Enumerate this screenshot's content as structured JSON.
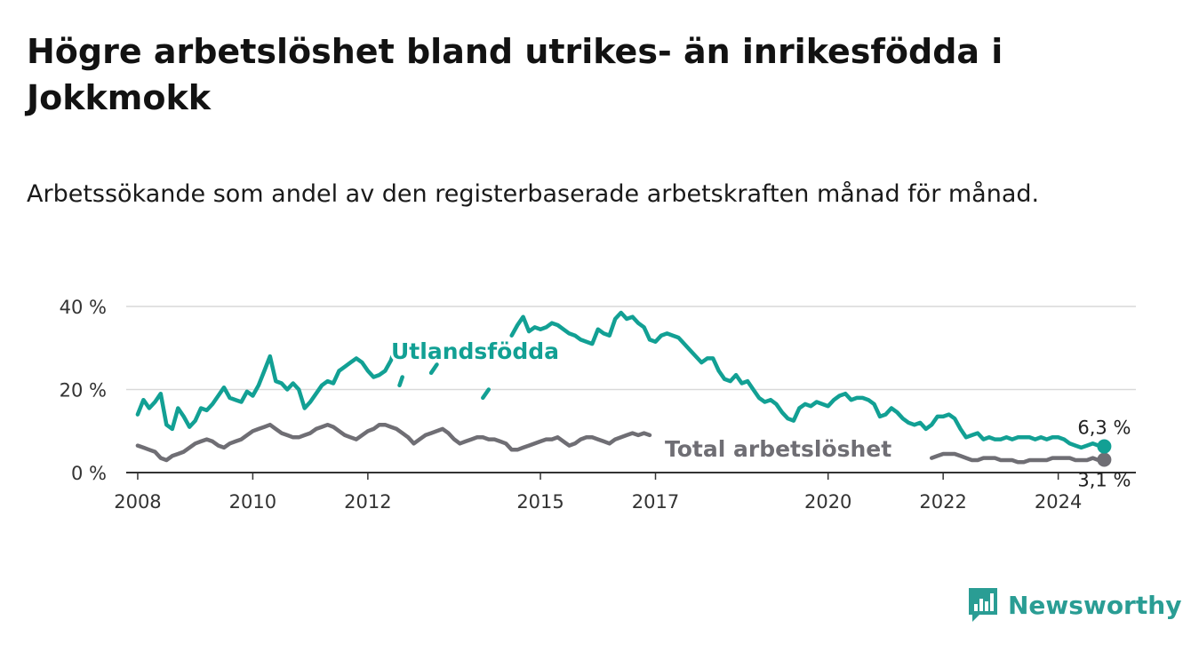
{
  "title": "Högre arbetslöshet bland utrikes- än inrikesfödda i Jokkmokk",
  "subtitle": "Arbetssökande som andel av den registerbaserade arbetskraften månad för månad.",
  "brand": {
    "name": "Newsworthy",
    "color": "#2a9d94",
    "icon": "bar-chart-logo-icon"
  },
  "colors": {
    "foreign_born": "#12a094",
    "total": "#6f6e74",
    "grid": "#d9d9d9"
  },
  "chart_data": {
    "type": "line",
    "ylim": [
      0,
      40
    ],
    "yticks": [
      0,
      20,
      40
    ],
    "ytick_labels": [
      "0 %",
      "20 %",
      "40 %"
    ],
    "x_domain": [
      2007.8,
      2025.35
    ],
    "xticks": [
      2008,
      2010,
      2012,
      2015,
      2017,
      2020,
      2022,
      2024
    ],
    "xtick_labels": [
      "2008",
      "2010",
      "2012",
      "2015",
      "2017",
      "2020",
      "2022",
      "2024"
    ],
    "grid": true,
    "legend": "inline labels",
    "series": [
      {
        "name": "Utlandsfödda",
        "key": "foreign_born",
        "end_label": "6,3 %",
        "points": [
          [
            2008.0,
            14.0
          ],
          [
            2008.1,
            17.5
          ],
          [
            2008.2,
            15.5
          ],
          [
            2008.3,
            17.0
          ],
          [
            2008.4,
            19.0
          ],
          [
            2008.5,
            11.5
          ],
          [
            2008.6,
            10.5
          ],
          [
            2008.7,
            15.5
          ],
          [
            2008.8,
            13.5
          ],
          [
            2008.9,
            11.0
          ],
          [
            2009.0,
            12.5
          ],
          [
            2009.1,
            15.5
          ],
          [
            2009.2,
            15.0
          ],
          [
            2009.3,
            16.5
          ],
          [
            2009.4,
            18.5
          ],
          [
            2009.5,
            20.5
          ],
          [
            2009.6,
            18.0
          ],
          [
            2009.7,
            17.5
          ],
          [
            2009.8,
            17.0
          ],
          [
            2009.9,
            19.5
          ],
          [
            2010.0,
            18.5
          ],
          [
            2010.1,
            21.0
          ],
          [
            2010.2,
            24.5
          ],
          [
            2010.3,
            28.0
          ],
          [
            2010.4,
            22.0
          ],
          [
            2010.5,
            21.5
          ],
          [
            2010.6,
            20.0
          ],
          [
            2010.7,
            21.5
          ],
          [
            2010.8,
            20.0
          ],
          [
            2010.9,
            15.5
          ],
          [
            2011.0,
            17.0
          ],
          [
            2011.1,
            19.0
          ],
          [
            2011.2,
            21.0
          ],
          [
            2011.3,
            22.0
          ],
          [
            2011.4,
            21.5
          ],
          [
            2011.5,
            24.5
          ],
          [
            2011.6,
            25.5
          ],
          [
            2011.7,
            26.5
          ],
          [
            2011.8,
            27.5
          ],
          [
            2011.9,
            26.5
          ],
          [
            2012.0,
            24.5
          ],
          [
            2012.1,
            23.0
          ],
          [
            2012.2,
            23.5
          ],
          [
            2012.3,
            24.5
          ],
          [
            2012.4,
            27.0
          ],
          [
            2012.5,
            31.0
          ],
          null,
          [
            2012.55,
            21.0
          ],
          [
            2012.6,
            23.0
          ],
          null,
          [
            2013.1,
            24.0
          ],
          [
            2013.2,
            26.0
          ],
          null,
          [
            2014.0,
            18.0
          ],
          [
            2014.1,
            20.0
          ],
          null,
          [
            2014.5,
            33.0
          ],
          [
            2014.6,
            35.5
          ],
          [
            2014.7,
            37.5
          ],
          [
            2014.8,
            34.0
          ],
          [
            2014.9,
            35.0
          ],
          [
            2015.0,
            34.5
          ],
          [
            2015.1,
            35.0
          ],
          [
            2015.2,
            36.0
          ],
          [
            2015.3,
            35.5
          ],
          [
            2015.4,
            34.5
          ],
          [
            2015.5,
            33.5
          ],
          [
            2015.6,
            33.0
          ],
          [
            2015.7,
            32.0
          ],
          [
            2015.8,
            31.5
          ],
          [
            2015.9,
            31.0
          ],
          [
            2016.0,
            34.5
          ],
          [
            2016.1,
            33.5
          ],
          [
            2016.2,
            33.0
          ],
          [
            2016.3,
            37.0
          ],
          [
            2016.4,
            38.5
          ],
          [
            2016.5,
            37.0
          ],
          [
            2016.6,
            37.5
          ],
          [
            2016.7,
            36.0
          ],
          [
            2016.8,
            35.0
          ],
          [
            2016.9,
            32.0
          ],
          [
            2017.0,
            31.5
          ],
          [
            2017.1,
            33.0
          ],
          [
            2017.2,
            33.5
          ],
          [
            2017.3,
            33.0
          ],
          [
            2017.4,
            32.5
          ],
          [
            2017.5,
            31.0
          ],
          [
            2017.6,
            29.5
          ],
          [
            2017.7,
            28.0
          ],
          [
            2017.8,
            26.5
          ],
          [
            2017.9,
            27.5
          ],
          [
            2018.0,
            27.5
          ],
          [
            2018.1,
            24.5
          ],
          [
            2018.2,
            22.5
          ],
          [
            2018.3,
            22.0
          ],
          [
            2018.4,
            23.5
          ],
          [
            2018.5,
            21.5
          ],
          [
            2018.6,
            22.0
          ],
          [
            2018.7,
            20.0
          ],
          [
            2018.8,
            18.0
          ],
          [
            2018.9,
            17.0
          ],
          [
            2019.0,
            17.5
          ],
          [
            2019.1,
            16.5
          ],
          [
            2019.2,
            14.5
          ],
          [
            2019.3,
            13.0
          ],
          [
            2019.4,
            12.5
          ],
          [
            2019.5,
            15.5
          ],
          [
            2019.6,
            16.5
          ],
          [
            2019.7,
            16.0
          ],
          [
            2019.8,
            17.0
          ],
          [
            2019.9,
            16.5
          ],
          [
            2020.0,
            16.0
          ],
          [
            2020.1,
            17.5
          ],
          [
            2020.2,
            18.5
          ],
          [
            2020.3,
            19.0
          ],
          [
            2020.4,
            17.5
          ],
          [
            2020.5,
            18.0
          ],
          [
            2020.6,
            18.0
          ],
          [
            2020.7,
            17.5
          ],
          [
            2020.8,
            16.5
          ],
          [
            2020.9,
            13.5
          ],
          [
            2021.0,
            14.0
          ],
          [
            2021.1,
            15.5
          ],
          [
            2021.2,
            14.5
          ],
          [
            2021.3,
            13.0
          ],
          [
            2021.4,
            12.0
          ],
          [
            2021.5,
            11.5
          ],
          [
            2021.6,
            12.0
          ],
          [
            2021.7,
            10.5
          ],
          [
            2021.8,
            11.5
          ],
          [
            2021.9,
            13.5
          ],
          [
            2022.0,
            13.5
          ],
          [
            2022.1,
            14.0
          ],
          [
            2022.2,
            13.0
          ],
          [
            2022.3,
            10.5
          ],
          [
            2022.4,
            8.5
          ],
          [
            2022.5,
            9.0
          ],
          [
            2022.6,
            9.5
          ],
          [
            2022.7,
            8.0
          ],
          [
            2022.8,
            8.5
          ],
          [
            2022.9,
            8.0
          ],
          [
            2023.0,
            8.0
          ],
          [
            2023.1,
            8.5
          ],
          [
            2023.2,
            8.0
          ],
          [
            2023.3,
            8.5
          ],
          [
            2023.4,
            8.5
          ],
          [
            2023.5,
            8.5
          ],
          [
            2023.6,
            8.0
          ],
          [
            2023.7,
            8.5
          ],
          [
            2023.8,
            8.0
          ],
          [
            2023.9,
            8.5
          ],
          [
            2024.0,
            8.5
          ],
          [
            2024.1,
            8.0
          ],
          [
            2024.2,
            7.0
          ],
          [
            2024.3,
            6.5
          ],
          [
            2024.4,
            6.0
          ],
          [
            2024.5,
            6.5
          ],
          [
            2024.6,
            7.0
          ],
          [
            2024.7,
            6.5
          ],
          [
            2024.8,
            6.3
          ]
        ]
      },
      {
        "name": "Total arbetslöshet",
        "key": "total",
        "end_label": "3,1 %",
        "points": [
          [
            2008.0,
            6.5
          ],
          [
            2008.1,
            6.0
          ],
          [
            2008.2,
            5.5
          ],
          [
            2008.3,
            5.0
          ],
          [
            2008.4,
            3.5
          ],
          [
            2008.5,
            3.0
          ],
          [
            2008.6,
            4.0
          ],
          [
            2008.7,
            4.5
          ],
          [
            2008.8,
            5.0
          ],
          [
            2008.9,
            6.0
          ],
          [
            2009.0,
            7.0
          ],
          [
            2009.1,
            7.5
          ],
          [
            2009.2,
            8.0
          ],
          [
            2009.3,
            7.5
          ],
          [
            2009.4,
            6.5
          ],
          [
            2009.5,
            6.0
          ],
          [
            2009.6,
            7.0
          ],
          [
            2009.7,
            7.5
          ],
          [
            2009.8,
            8.0
          ],
          [
            2009.9,
            9.0
          ],
          [
            2010.0,
            10.0
          ],
          [
            2010.1,
            10.5
          ],
          [
            2010.2,
            11.0
          ],
          [
            2010.3,
            11.5
          ],
          [
            2010.4,
            10.5
          ],
          [
            2010.5,
            9.5
          ],
          [
            2010.6,
            9.0
          ],
          [
            2010.7,
            8.5
          ],
          [
            2010.8,
            8.5
          ],
          [
            2010.9,
            9.0
          ],
          [
            2011.0,
            9.5
          ],
          [
            2011.1,
            10.5
          ],
          [
            2011.2,
            11.0
          ],
          [
            2011.3,
            11.5
          ],
          [
            2011.4,
            11.0
          ],
          [
            2011.5,
            10.0
          ],
          [
            2011.6,
            9.0
          ],
          [
            2011.7,
            8.5
          ],
          [
            2011.8,
            8.0
          ],
          [
            2011.9,
            9.0
          ],
          [
            2012.0,
            10.0
          ],
          [
            2012.1,
            10.5
          ],
          [
            2012.2,
            11.5
          ],
          [
            2012.3,
            11.5
          ],
          [
            2012.4,
            11.0
          ],
          [
            2012.5,
            10.5
          ],
          [
            2012.6,
            9.5
          ],
          [
            2012.7,
            8.5
          ],
          [
            2012.8,
            7.0
          ],
          [
            2012.9,
            8.0
          ],
          [
            2013.0,
            9.0
          ],
          [
            2013.1,
            9.5
          ],
          [
            2013.2,
            10.0
          ],
          [
            2013.3,
            10.5
          ],
          [
            2013.4,
            9.5
          ],
          [
            2013.5,
            8.0
          ],
          [
            2013.6,
            7.0
          ],
          [
            2013.7,
            7.5
          ],
          [
            2013.8,
            8.0
          ],
          [
            2013.9,
            8.5
          ],
          [
            2014.0,
            8.5
          ],
          [
            2014.1,
            8.0
          ],
          [
            2014.2,
            8.0
          ],
          [
            2014.3,
            7.5
          ],
          [
            2014.4,
            7.0
          ],
          [
            2014.5,
            5.5
          ],
          [
            2014.6,
            5.5
          ],
          [
            2014.7,
            6.0
          ],
          [
            2014.8,
            6.5
          ],
          [
            2014.9,
            7.0
          ],
          [
            2015.0,
            7.5
          ],
          [
            2015.1,
            8.0
          ],
          [
            2015.2,
            8.0
          ],
          [
            2015.3,
            8.5
          ],
          [
            2015.4,
            7.5
          ],
          [
            2015.5,
            6.5
          ],
          [
            2015.6,
            7.0
          ],
          [
            2015.7,
            8.0
          ],
          [
            2015.8,
            8.5
          ],
          [
            2015.9,
            8.5
          ],
          [
            2016.0,
            8.0
          ],
          [
            2016.1,
            7.5
          ],
          [
            2016.2,
            7.0
          ],
          [
            2016.3,
            8.0
          ],
          [
            2016.4,
            8.5
          ],
          [
            2016.5,
            9.0
          ],
          [
            2016.6,
            9.5
          ],
          [
            2016.7,
            9.0
          ],
          [
            2016.8,
            9.5
          ],
          [
            2016.9,
            9.0
          ],
          null,
          [
            2021.8,
            3.5
          ],
          [
            2021.9,
            4.0
          ],
          [
            2022.0,
            4.5
          ],
          [
            2022.1,
            4.5
          ],
          [
            2022.2,
            4.5
          ],
          [
            2022.3,
            4.0
          ],
          [
            2022.4,
            3.5
          ],
          [
            2022.5,
            3.0
          ],
          [
            2022.6,
            3.0
          ],
          [
            2022.7,
            3.5
          ],
          [
            2022.8,
            3.5
          ],
          [
            2022.9,
            3.5
          ],
          [
            2023.0,
            3.0
          ],
          [
            2023.1,
            3.0
          ],
          [
            2023.2,
            3.0
          ],
          [
            2023.3,
            2.5
          ],
          [
            2023.4,
            2.5
          ],
          [
            2023.5,
            3.0
          ],
          [
            2023.6,
            3.0
          ],
          [
            2023.7,
            3.0
          ],
          [
            2023.8,
            3.0
          ],
          [
            2023.9,
            3.5
          ],
          [
            2024.0,
            3.5
          ],
          [
            2024.1,
            3.5
          ],
          [
            2024.2,
            3.5
          ],
          [
            2024.3,
            3.0
          ],
          [
            2024.4,
            3.0
          ],
          [
            2024.5,
            3.0
          ],
          [
            2024.6,
            3.5
          ],
          [
            2024.7,
            3.0
          ],
          [
            2024.8,
            3.1
          ]
        ]
      }
    ]
  }
}
